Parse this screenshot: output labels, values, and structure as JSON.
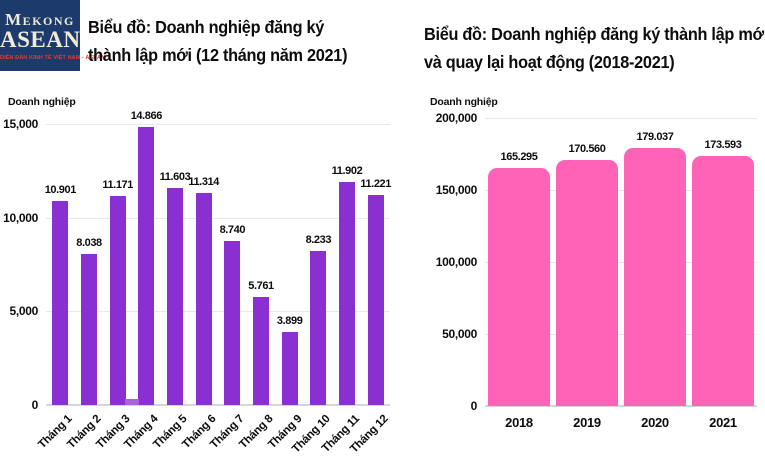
{
  "logo": {
    "line1": "Mekong",
    "line2": "ASEAN",
    "tagline": "DIỄN ĐÀN KINH TẾ VIỆT NAM - ASEAN",
    "colors": {
      "background": "#1C3A6B",
      "text": "#F0EBD5",
      "tagline": "#E8392F"
    }
  },
  "chart_data": [
    {
      "type": "bar",
      "title": "Biểu đồ: Doanh nghiệp đăng ký thành lập mới (12 tháng năm 2021)",
      "title_lines": [
        "Biểu đồ: Doanh nghiệp đăng ký",
        "thành lập mới (12 tháng năm 2021)"
      ],
      "ylabel": "Doanh nghiệp",
      "categories": [
        "Tháng 1",
        "Tháng 2",
        "Tháng 3",
        "Tháng 4",
        "Tháng 5",
        "Tháng 6",
        "Tháng 7",
        "Tháng 8",
        "Tháng 9",
        "Tháng 10",
        "Tháng 11",
        "Tháng 12"
      ],
      "values": [
        10901,
        8038,
        11171,
        14866,
        11603,
        11314,
        8740,
        5761,
        3899,
        8233,
        11902,
        11221
      ],
      "value_labels": [
        "10.901",
        "8.038",
        "11.171",
        "14.866",
        "11.603",
        "11.314",
        "8.740",
        "5.761",
        "3.899",
        "8.233",
        "11.902",
        "11.221"
      ],
      "ylim": [
        0,
        15000
      ],
      "yticks": [
        0,
        5000,
        10000,
        15000
      ],
      "ytick_labels": [
        "0",
        "5,000",
        "10,000",
        "15,000"
      ],
      "bar_color": "#8A2FD0",
      "grid": true,
      "legend": false,
      "x_label_rotation": -45,
      "anomaly_bar": {
        "after_index": 2,
        "value": 200,
        "color": "#A863DC"
      }
    },
    {
      "type": "bar",
      "title": "Biểu đồ: Doanh nghiệp đăng ký thành lập mới và quay lại hoạt động (2018-2021)",
      "title_lines": [
        "Biểu đồ: Doanh nghiệp đăng ký thành lập mới",
        "và quay lại hoạt động (2018-2021)"
      ],
      "ylabel": "Doanh nghiệp",
      "categories": [
        "2018",
        "2019",
        "2020",
        "2021"
      ],
      "values": [
        165295,
        170560,
        179037,
        173593
      ],
      "value_labels": [
        "165.295",
        "170.560",
        "179.037",
        "173.593"
      ],
      "ylim": [
        0,
        200000
      ],
      "yticks": [
        0,
        50000,
        100000,
        150000,
        200000
      ],
      "ytick_labels": [
        "0",
        "50,000",
        "100,000",
        "150,000",
        "200,000"
      ],
      "bar_color": "#FF63B8",
      "grid": true,
      "legend": false,
      "rounded_top": true,
      "x_label_rotation": 0
    }
  ]
}
